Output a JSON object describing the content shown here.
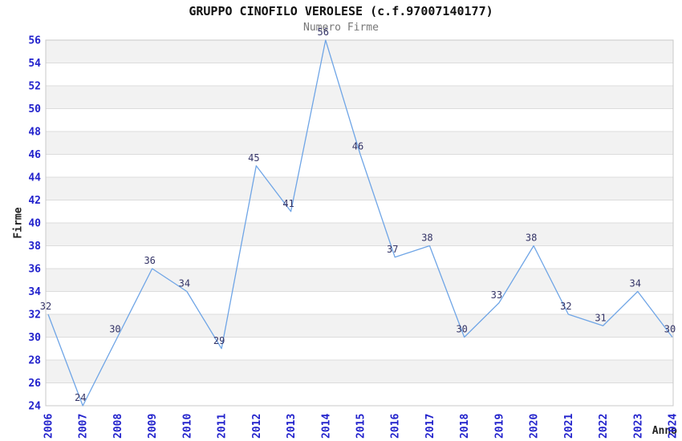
{
  "chart_data": {
    "type": "line",
    "title": "GRUPPO CINOFILO VEROLESE (c.f.97007140177)",
    "subtitle": "Numero Firme",
    "xlabel": "Anno",
    "ylabel": "Firme",
    "x": [
      "2006",
      "2007",
      "2008",
      "2009",
      "2010",
      "2011",
      "2012",
      "2013",
      "2014",
      "2015",
      "2016",
      "2017",
      "2018",
      "2019",
      "2020",
      "2021",
      "2022",
      "2023",
      "2024"
    ],
    "values": [
      32,
      24,
      30,
      36,
      34,
      29,
      45,
      41,
      56,
      46,
      37,
      38,
      30,
      33,
      38,
      32,
      31,
      34,
      30
    ],
    "series_name": "Numero Firme",
    "ylim": [
      24,
      56
    ],
    "ytick_step": 2,
    "grid": "horizontal-bands",
    "legend": "none",
    "data_labels_shown": true,
    "colors": {
      "line": "#6fa5e6",
      "tick_labels": "#2222cc",
      "data_labels": "#333366",
      "band": "#f2f2f2",
      "gridline": "#dcdcdc",
      "border": "#c8c8c8",
      "title": "#111111",
      "subtitle": "#777777",
      "axis_label": "#222222"
    }
  }
}
